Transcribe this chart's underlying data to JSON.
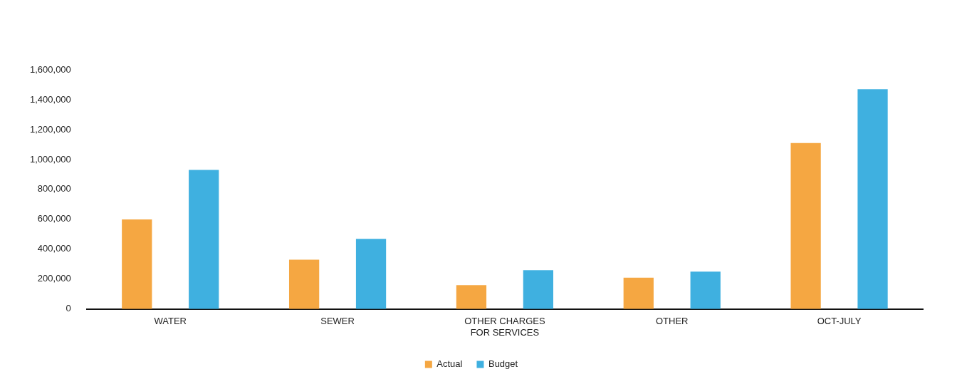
{
  "chart_data": {
    "type": "bar",
    "categories": [
      "WATER",
      "SEWER",
      "OTHER CHARGES FOR SERVICES",
      "OTHER",
      "OCT-JULY"
    ],
    "series": [
      {
        "name": "Actual",
        "color": "#f5a742",
        "values": [
          600000,
          330000,
          160000,
          210000,
          1110000
        ]
      },
      {
        "name": "Budget",
        "color": "#3fb0e0",
        "values": [
          930000,
          470000,
          260000,
          250000,
          1470000
        ]
      }
    ],
    "ylim": [
      0,
      1600000
    ],
    "yticks": [
      0,
      {
        "value": 200000,
        "label": "200,000"
      },
      {
        "value": 400000,
        "label": "400,000"
      },
      {
        "value": 600000,
        "label": "600,000"
      },
      {
        "value": 800000,
        "label": "800,000"
      },
      {
        "value": 1000000,
        "label": "1,000,000"
      },
      {
        "value": 1200000,
        "label": "1,200,000"
      },
      {
        "value": 1400000,
        "label": "1,400,000"
      },
      {
        "value": 1600000,
        "label": "1,600,000"
      }
    ],
    "grid": false,
    "legend": "bottom"
  }
}
